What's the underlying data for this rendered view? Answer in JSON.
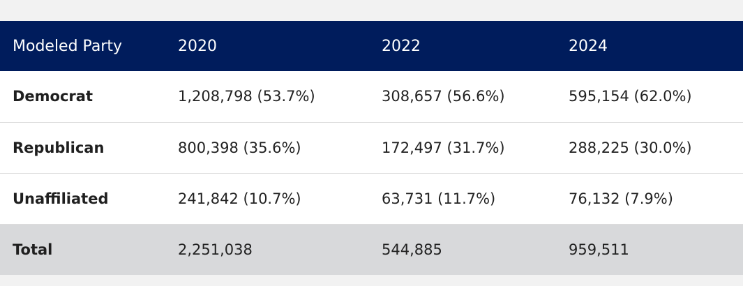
{
  "table": {
    "headers": [
      "Modeled Party",
      "2020",
      "2022",
      "2024"
    ],
    "rows": [
      {
        "party": "Democrat",
        "y2020": "1,208,798 (53.7%)",
        "y2022": "308,657 (56.6%)",
        "y2024": "595,154 (62.0%)"
      },
      {
        "party": "Republican",
        "y2020": "800,398 (35.6%)",
        "y2022": "172,497 (31.7%)",
        "y2024": "288,225 (30.0%)"
      },
      {
        "party": "Unaffiliated",
        "y2020": "241,842 (10.7%)",
        "y2022": "63,731 (11.7%)",
        "y2024": "76,132 (7.9%)"
      }
    ],
    "total": {
      "party": "Total",
      "y2020": "2,251,038",
      "y2022": "544,885",
      "y2024": "959,511"
    }
  },
  "colors": {
    "header_bg": "#001c5c",
    "header_text": "#ffffff",
    "total_bg": "#d8d9db",
    "page_bg": "#f2f2f2"
  }
}
